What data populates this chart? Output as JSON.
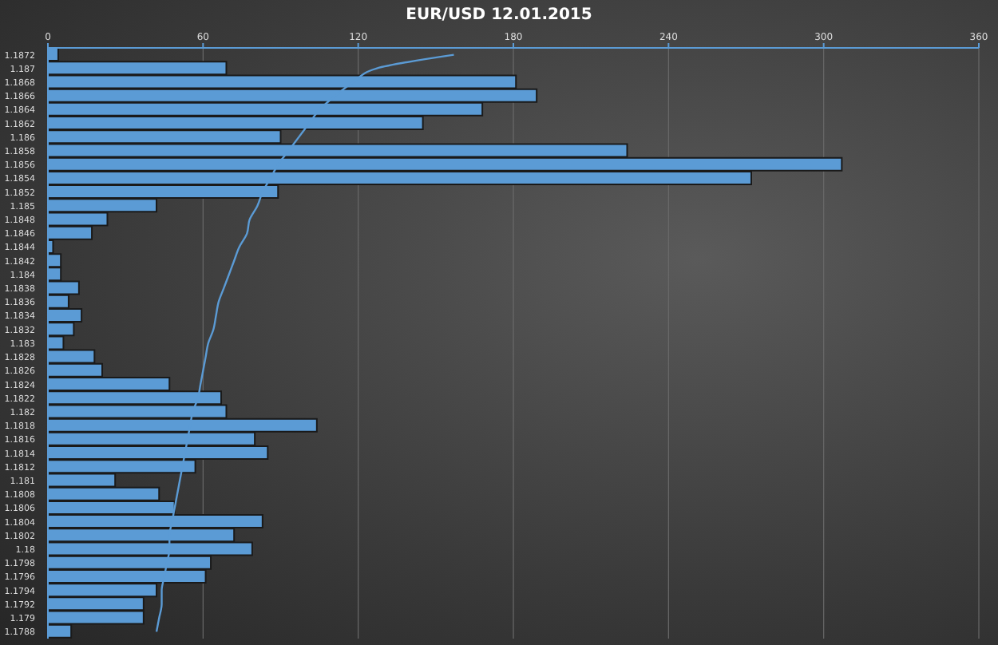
{
  "chart_data": {
    "type": "bar",
    "orientation": "horizontal",
    "title": "EUR/USD 12.01.2015",
    "categories": [
      "1.1872",
      "1.187",
      "1.1868",
      "1.1866",
      "1.1864",
      "1.1862",
      "1.186",
      "1.1858",
      "1.1856",
      "1.1854",
      "1.1852",
      "1.185",
      "1.1848",
      "1.1846",
      "1.1844",
      "1.1842",
      "1.184",
      "1.1838",
      "1.1836",
      "1.1834",
      "1.1832",
      "1.183",
      "1.1828",
      "1.1826",
      "1.1824",
      "1.1822",
      "1.182",
      "1.1818",
      "1.1816",
      "1.1814",
      "1.1812",
      "1.181",
      "1.1808",
      "1.1806",
      "1.1804",
      "1.1802",
      "1.18",
      "1.1798",
      "1.1796",
      "1.1794",
      "1.1792",
      "1.179",
      "1.1788"
    ],
    "series": [
      {
        "color": "#5b9bd5",
        "values": [
          4,
          69,
          181,
          189,
          168,
          145,
          90,
          224,
          307,
          272,
          89,
          42,
          23,
          17,
          2,
          5,
          5,
          12,
          8,
          13,
          10,
          6,
          18,
          21,
          47,
          67,
          69,
          104,
          80,
          85,
          57,
          26,
          43,
          49,
          83,
          72,
          79,
          63,
          61,
          42,
          37,
          37,
          9
        ]
      },
      {
        "type": "line",
        "color": "#5b9bd5",
        "values": [
          157,
          127,
          118,
          111,
          105,
          101,
          97,
          93,
          89,
          86,
          83,
          81,
          78,
          77,
          74,
          72,
          70,
          68,
          66,
          65,
          64,
          62,
          61,
          60,
          59,
          58,
          56,
          55,
          54,
          53,
          52,
          51,
          50,
          49,
          48,
          47,
          47,
          46,
          45,
          44,
          44,
          43,
          42
        ]
      }
    ],
    "xlim": [
      0,
      360
    ],
    "xticks": [
      0,
      60,
      120,
      180,
      240,
      300,
      360
    ],
    "grid": "x",
    "legend": false
  }
}
